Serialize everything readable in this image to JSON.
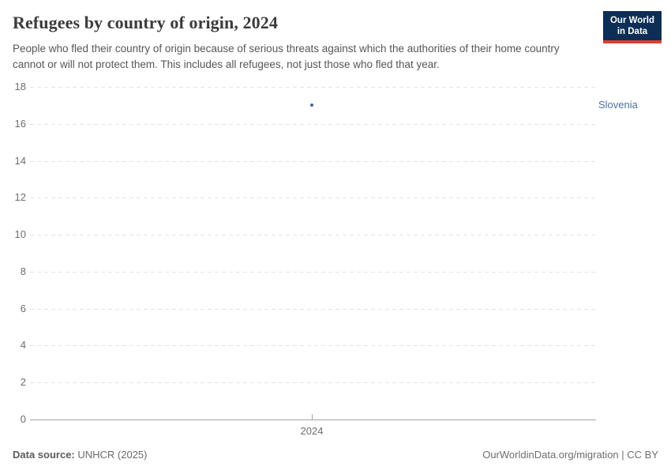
{
  "header": {
    "title": "Refugees by country of origin, 2024",
    "subtitle": "People who fled their country of origin because of serious threats against which the authorities of their home country cannot or will not protect them. This includes all refugees, not just those who fled that year.",
    "logo": {
      "line1": "Our World",
      "line2": "in Data",
      "bg_color": "#0d2e55",
      "accent_color": "#dc3e34"
    }
  },
  "chart_data": {
    "type": "scatter",
    "title": "Refugees by country of origin, 2024",
    "x": [
      "2024"
    ],
    "series": [
      {
        "name": "Slovenia",
        "values": [
          17
        ],
        "color": "#3f649c"
      }
    ],
    "xlabel": "",
    "ylabel": "",
    "ylim": [
      0,
      18
    ],
    "yticks": [
      0,
      2,
      4,
      6,
      8,
      10,
      12,
      14,
      16,
      18
    ],
    "xticks": [
      "2024"
    ],
    "grid": true,
    "gridline_color": "#e4e4e4",
    "axis_color": "#a5a5a5",
    "entity_label": "Slovenia",
    "entity_label_color": "#4c6fa8"
  },
  "footer": {
    "source_label": "Data source:",
    "source_value": " UNHCR (2025)",
    "license": "OurWorldinData.org/migration | CC BY"
  }
}
